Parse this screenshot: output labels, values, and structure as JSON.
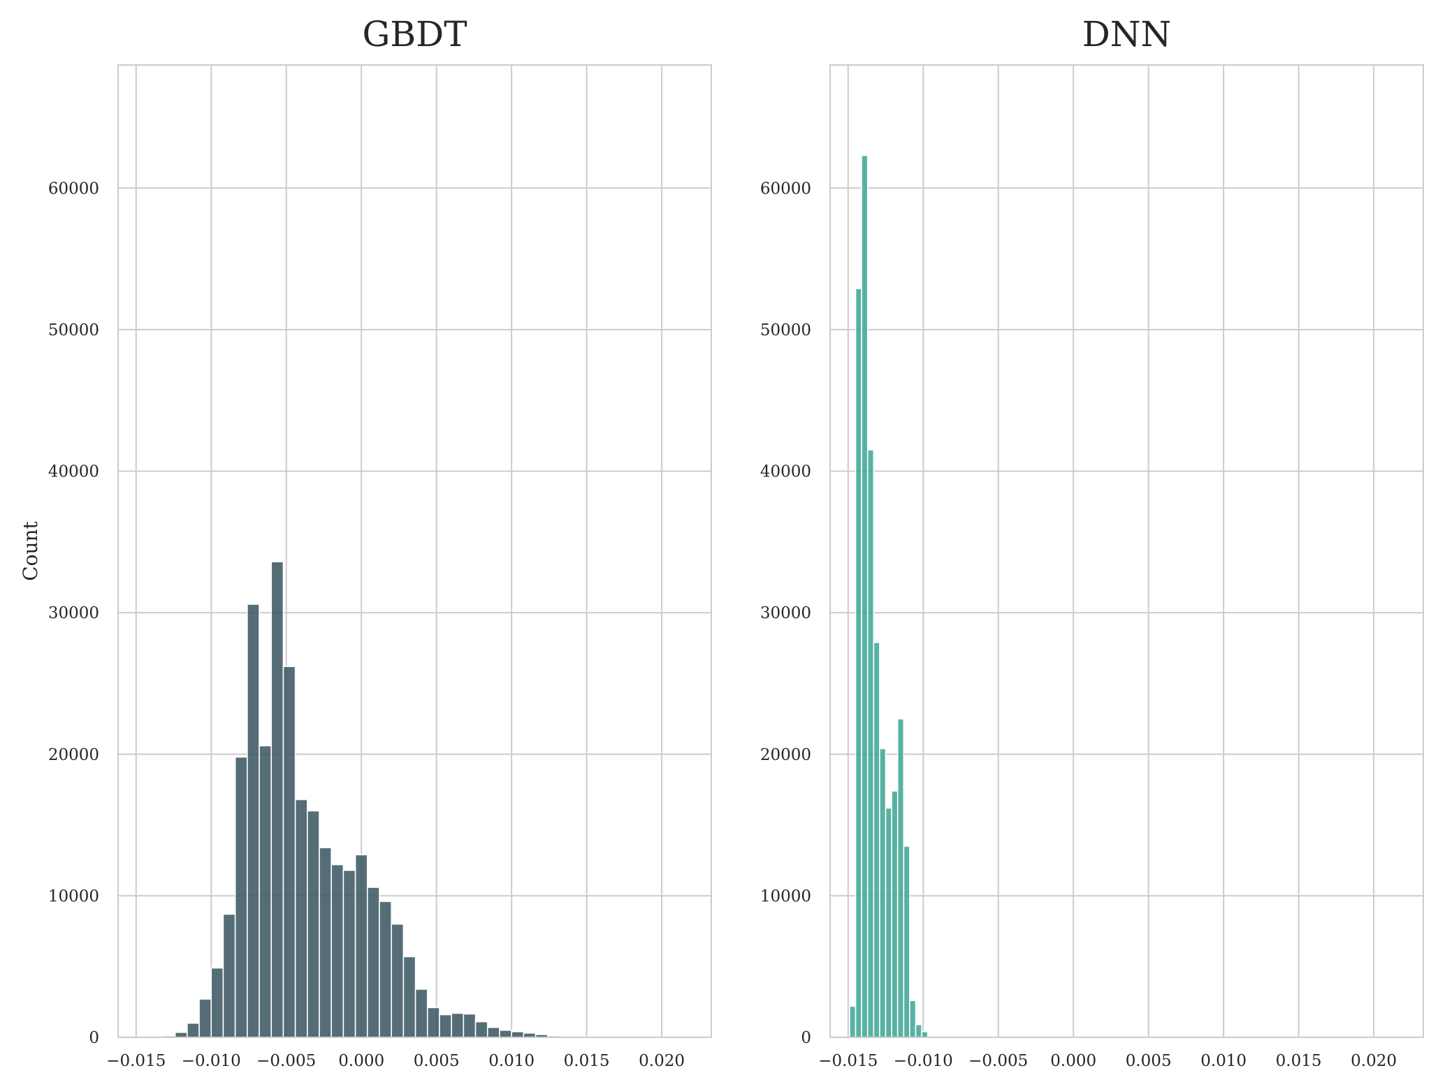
{
  "chart_data": [
    {
      "type": "bar",
      "title": "GBDT",
      "xlabel": "",
      "ylabel": "Count",
      "xlim": [
        -0.0162,
        0.0233
      ],
      "ylim": [
        0,
        68700
      ],
      "xticks": [
        -0.015,
        -0.01,
        -0.005,
        0.0,
        0.005,
        0.01,
        0.015,
        0.02
      ],
      "xtick_labels": [
        "−0.015",
        "−0.010",
        "−0.005",
        "0.000",
        "0.005",
        "0.010",
        "0.015",
        "0.020"
      ],
      "yticks": [
        0,
        10000,
        20000,
        30000,
        40000,
        50000,
        60000
      ],
      "ytick_labels": [
        "0",
        "10000",
        "20000",
        "30000",
        "40000",
        "50000",
        "60000"
      ],
      "grid": true,
      "color": "#37535f",
      "bin_start": -0.014,
      "bin_width": 0.0008,
      "values": [
        30,
        100,
        350,
        1000,
        2700,
        4900,
        8700,
        19800,
        30600,
        20600,
        33600,
        26200,
        16800,
        16000,
        13400,
        12200,
        11800,
        12900,
        10600,
        9600,
        8000,
        5700,
        3400,
        2100,
        1600,
        1700,
        1650,
        1100,
        700,
        500,
        400,
        300,
        200,
        100,
        50,
        20
      ]
    },
    {
      "type": "bar",
      "title": "DNN",
      "xlabel": "",
      "ylabel": "",
      "xlim": [
        -0.0162,
        0.0233
      ],
      "ylim": [
        0,
        68700
      ],
      "xticks": [
        -0.015,
        -0.01,
        -0.005,
        0.0,
        0.005,
        0.01,
        0.015,
        0.02
      ],
      "xtick_labels": [
        "−0.015",
        "−0.010",
        "−0.005",
        "0.000",
        "0.005",
        "0.010",
        "0.015",
        "0.020"
      ],
      "yticks": [
        0,
        10000,
        20000,
        30000,
        40000,
        50000,
        60000
      ],
      "ytick_labels": [
        "0",
        "10000",
        "20000",
        "30000",
        "40000",
        "50000",
        "60000"
      ],
      "grid": true,
      "color": "#3aa493",
      "bin_start": -0.0149,
      "bin_width": 0.0004,
      "values": [
        2200,
        52900,
        62300,
        41500,
        27900,
        20400,
        16200,
        17400,
        22500,
        13500,
        2600,
        900,
        400
      ]
    }
  ]
}
